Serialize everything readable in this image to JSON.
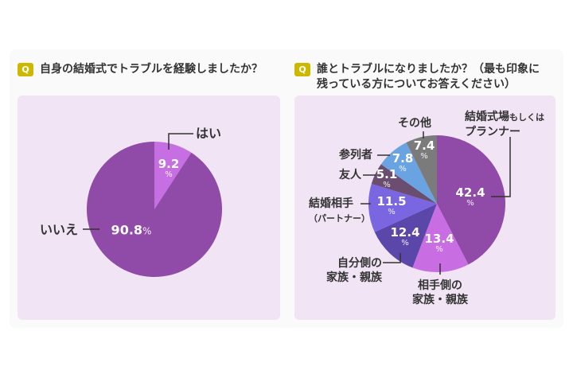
{
  "chart_data": [
    {
      "type": "pie",
      "title": "自身の結婚式でトラブルを経験しましたか？",
      "badge": "Q",
      "unit": "%",
      "slices": [
        {
          "label": "はい",
          "value": 9.2,
          "color": "#c56fe2"
        },
        {
          "label": "いいえ",
          "value": 90.8,
          "color": "#8f4ba7"
        }
      ]
    },
    {
      "type": "pie",
      "title_line1": "誰とトラブルになりましたか？（最も印象に",
      "title_line2": "残っている方についてお答えください）",
      "badge": "Q",
      "unit": "%",
      "slices": [
        {
          "label": "結婚式場",
          "label_suffix": "もしくは",
          "label_line2": "プランナー",
          "value": 42.4,
          "color": "#8f4ba7"
        },
        {
          "label": "相手側の",
          "label_line2": "家族・親族",
          "value": 13.4,
          "color": "#c96de2"
        },
        {
          "label": "自分側の",
          "label_line2": "家族・親族",
          "value": 12.4,
          "color": "#5a47a9"
        },
        {
          "label": "結婚相手",
          "label_line2": "（パートナー）",
          "value": 11.5,
          "color": "#7a66e0"
        },
        {
          "label": "友人",
          "value": 5.1,
          "color": "#6b4e6f"
        },
        {
          "label": "参列者",
          "value": 7.8,
          "color": "#6aa3e2"
        },
        {
          "label": "その他",
          "value": 7.4,
          "color": "#7b7b7b"
        }
      ]
    }
  ]
}
